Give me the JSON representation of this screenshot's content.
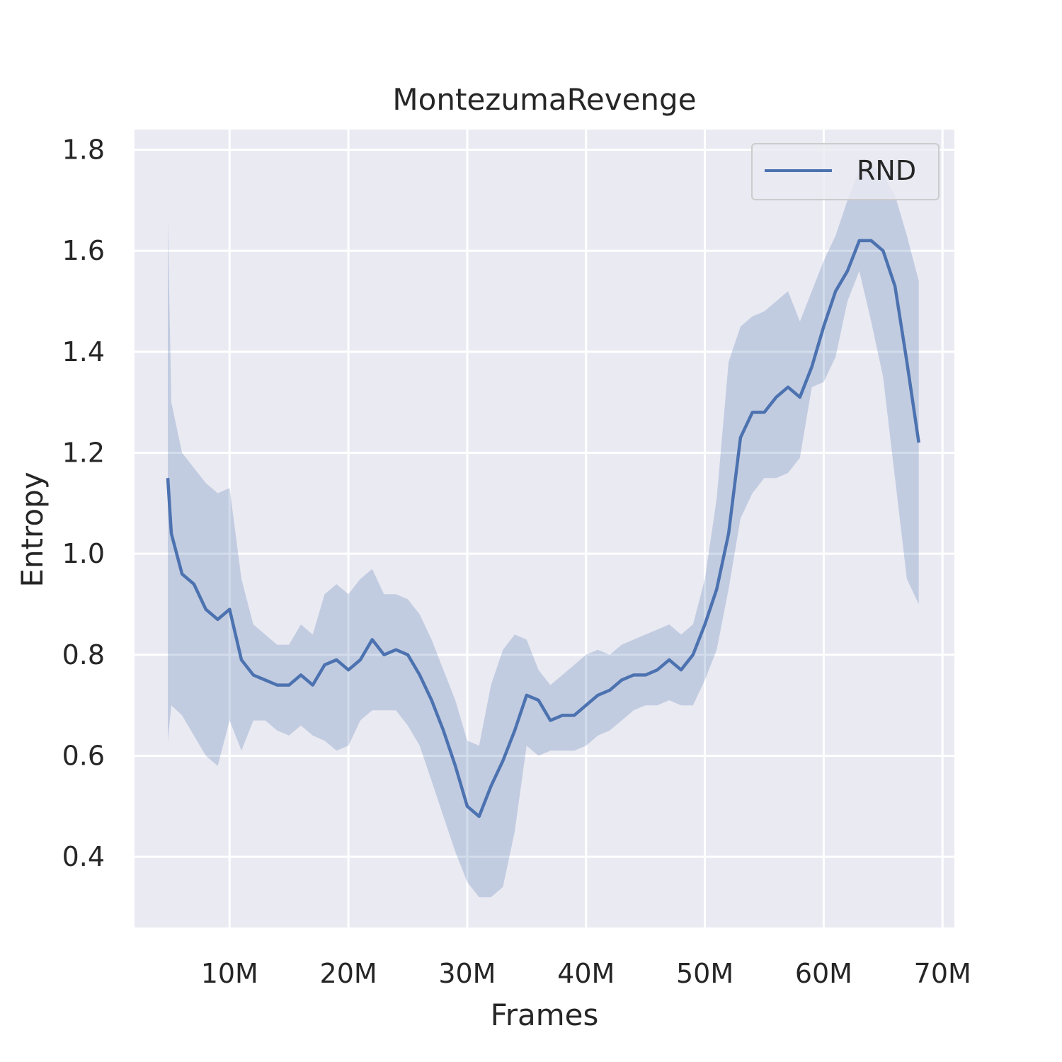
{
  "chart_data": {
    "type": "line",
    "title": "MontezumaRevenge",
    "xlabel": "Frames",
    "ylabel": "Entropy",
    "xlim": [
      2000000,
      71000000
    ],
    "ylim": [
      0.26,
      1.84
    ],
    "x_ticks": [
      10000000,
      20000000,
      30000000,
      40000000,
      50000000,
      60000000,
      70000000
    ],
    "x_tick_labels": [
      "10M",
      "20M",
      "30M",
      "40M",
      "50M",
      "60M",
      "70M"
    ],
    "y_ticks": [
      0.4,
      0.6,
      0.8,
      1.0,
      1.2,
      1.4,
      1.6,
      1.8
    ],
    "y_tick_labels": [
      "0.4",
      "0.6",
      "0.8",
      "1.0",
      "1.2",
      "1.4",
      "1.6",
      "1.8"
    ],
    "grid": true,
    "legend_position": "top-right",
    "colors": {
      "line": "#4c72b0",
      "band": "#4c72b0",
      "background": "#eaeaf2",
      "grid": "#ffffff"
    },
    "series": [
      {
        "name": "RND",
        "x": [
          4800000,
          5100000,
          6000000,
          7000000,
          8000000,
          9000000,
          10000000,
          11000000,
          12000000,
          13000000,
          14000000,
          15000000,
          16000000,
          17000000,
          18000000,
          19000000,
          20000000,
          21000000,
          22000000,
          23000000,
          24000000,
          25000000,
          26000000,
          27000000,
          28000000,
          29000000,
          30000000,
          31000000,
          32000000,
          33000000,
          34000000,
          35000000,
          36000000,
          37000000,
          38000000,
          39000000,
          40000000,
          41000000,
          42000000,
          43000000,
          44000000,
          45000000,
          46000000,
          47000000,
          48000000,
          49000000,
          50000000,
          51000000,
          52000000,
          53000000,
          54000000,
          55000000,
          56000000,
          57000000,
          58000000,
          59000000,
          60000000,
          61000000,
          62000000,
          63000000,
          64000000,
          65000000,
          66000000,
          67000000,
          68000000
        ],
        "y": [
          1.15,
          1.04,
          0.96,
          0.94,
          0.89,
          0.87,
          0.89,
          0.79,
          0.76,
          0.75,
          0.74,
          0.74,
          0.76,
          0.74,
          0.78,
          0.79,
          0.77,
          0.79,
          0.83,
          0.8,
          0.81,
          0.8,
          0.76,
          0.71,
          0.65,
          0.58,
          0.5,
          0.48,
          0.54,
          0.59,
          0.65,
          0.72,
          0.71,
          0.67,
          0.68,
          0.68,
          0.7,
          0.72,
          0.73,
          0.75,
          0.76,
          0.76,
          0.77,
          0.79,
          0.77,
          0.8,
          0.86,
          0.93,
          1.04,
          1.23,
          1.28,
          1.28,
          1.31,
          1.33,
          1.31,
          1.37,
          1.45,
          1.52,
          1.56,
          1.62,
          1.62,
          1.6,
          1.53,
          1.38,
          1.22
        ],
        "lower": [
          0.63,
          0.7,
          0.68,
          0.64,
          0.6,
          0.58,
          0.67,
          0.61,
          0.67,
          0.67,
          0.65,
          0.64,
          0.66,
          0.64,
          0.63,
          0.61,
          0.62,
          0.67,
          0.69,
          0.69,
          0.69,
          0.66,
          0.62,
          0.55,
          0.48,
          0.41,
          0.35,
          0.32,
          0.32,
          0.34,
          0.45,
          0.62,
          0.6,
          0.61,
          0.61,
          0.61,
          0.62,
          0.64,
          0.65,
          0.67,
          0.69,
          0.7,
          0.7,
          0.71,
          0.7,
          0.7,
          0.75,
          0.81,
          0.93,
          1.07,
          1.12,
          1.15,
          1.15,
          1.16,
          1.19,
          1.33,
          1.34,
          1.39,
          1.5,
          1.56,
          1.46,
          1.35,
          1.15,
          0.95,
          0.9
        ],
        "upper": [
          1.66,
          1.3,
          1.2,
          1.17,
          1.14,
          1.12,
          1.13,
          0.95,
          0.86,
          0.84,
          0.82,
          0.82,
          0.86,
          0.84,
          0.92,
          0.94,
          0.92,
          0.95,
          0.97,
          0.92,
          0.92,
          0.91,
          0.88,
          0.83,
          0.77,
          0.71,
          0.63,
          0.62,
          0.74,
          0.81,
          0.84,
          0.83,
          0.77,
          0.74,
          0.76,
          0.78,
          0.8,
          0.81,
          0.8,
          0.82,
          0.83,
          0.84,
          0.85,
          0.86,
          0.84,
          0.86,
          0.95,
          1.11,
          1.38,
          1.45,
          1.47,
          1.48,
          1.5,
          1.52,
          1.46,
          1.52,
          1.58,
          1.63,
          1.7,
          1.76,
          1.77,
          1.75,
          1.71,
          1.63,
          1.54
        ]
      }
    ]
  }
}
